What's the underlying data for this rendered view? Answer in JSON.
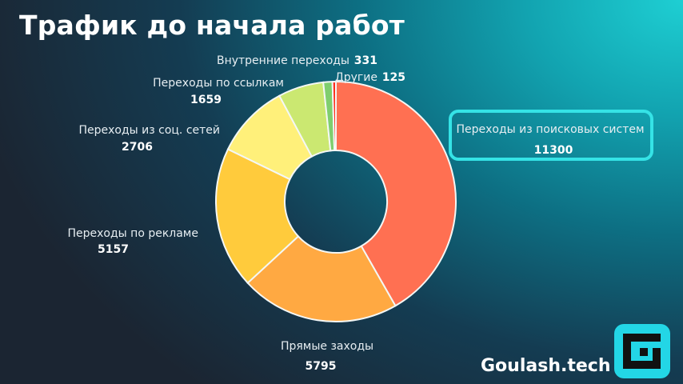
{
  "title": "Трафик до начала работ",
  "brand": "Goulash.tech",
  "chart_data": {
    "type": "pie",
    "donut": true,
    "title": "Трафик до начала работ",
    "slices": [
      {
        "label": "Переходы из поисковых систем",
        "value": 11300,
        "color": "#ff7052"
      },
      {
        "label": "Прямые заходы",
        "value": 5795,
        "color": "#ffa942"
      },
      {
        "label": "Переходы по рекламе",
        "value": 5157,
        "color": "#ffcb3c"
      },
      {
        "label": "Переходы из соц. сетей",
        "value": 2706,
        "color": "#fff07a"
      },
      {
        "label": "Переходы по ссылкам",
        "value": 1659,
        "color": "#cbe871"
      },
      {
        "label": "Внутренние переходы",
        "value": 331,
        "color": "#7fce6e"
      },
      {
        "label": "Другие",
        "value": 125,
        "color": "#ff2f1d"
      }
    ],
    "highlighted": "Переходы из поисковых систем"
  }
}
